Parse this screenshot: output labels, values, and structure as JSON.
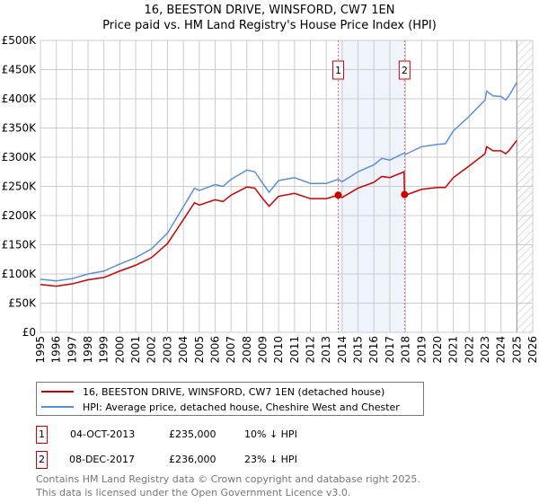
{
  "chart_data": {
    "type": "line",
    "title": "16, BEESTON DRIVE, WINSFORD, CW7 1EN",
    "subtitle": "Price paid vs. HM Land Registry's House Price Index (HPI)",
    "xlim": [
      1995,
      2026
    ],
    "ylim": [
      0,
      500000
    ],
    "y_ticks": [
      0,
      50000,
      100000,
      150000,
      200000,
      250000,
      300000,
      350000,
      400000,
      450000,
      500000
    ],
    "y_tick_labels": [
      "£0",
      "£50K",
      "£100K",
      "£150K",
      "£200K",
      "£250K",
      "£300K",
      "£350K",
      "£400K",
      "£450K",
      "£500K"
    ],
    "x_ticks": [
      "1995",
      "1996",
      "1997",
      "1998",
      "1999",
      "2000",
      "2001",
      "2002",
      "2003",
      "2004",
      "2005",
      "2006",
      "2007",
      "2008",
      "2009",
      "2010",
      "2011",
      "2012",
      "2013",
      "2014",
      "2015",
      "2016",
      "2017",
      "2018",
      "2019",
      "2020",
      "2021",
      "2022",
      "2023",
      "2024",
      "2025",
      "2026"
    ],
    "grid": true,
    "shaded_period": [
      2013.75,
      2017.93
    ],
    "forecast_hatch_from": 2025.0,
    "series": [
      {
        "name": "16, BEESTON DRIVE, WINSFORD, CW7 1EN (detached house)",
        "color": "#cc0000",
        "x": [
          1995,
          1996,
          1997,
          1998,
          1999,
          2000,
          2001,
          2002,
          2003,
          2004,
          2004.7,
          2005,
          2006,
          2006.5,
          2007,
          2008,
          2008.5,
          2009,
          2009.4,
          2010,
          2011,
          2012,
          2013,
          2013.75,
          2014,
          2015,
          2016,
          2016.5,
          2017,
          2017.9,
          2017.93,
          2018,
          2019,
          2020,
          2020.5,
          2021,
          2022,
          2023,
          2023.1,
          2023.5,
          2024,
          2024.3,
          2024.5,
          2025
        ],
        "y": [
          82,
          79,
          83,
          90,
          94,
          105,
          115,
          128,
          152,
          193,
          222,
          218,
          227,
          224,
          235,
          249,
          247,
          229,
          216,
          233,
          238,
          229,
          229,
          235,
          231,
          247,
          257,
          267,
          265,
          275,
          236,
          235,
          245,
          248,
          248,
          265,
          285,
          306,
          318,
          311,
          311,
          306,
          311,
          329
        ]
      },
      {
        "name": "HPI: Average price, detached house, Cheshire West and Chester",
        "color": "#5b8fd6",
        "x": [
          1995,
          1996,
          1997,
          1998,
          1999,
          2000,
          2001,
          2002,
          2003,
          2004,
          2004.7,
          2005,
          2006,
          2006.5,
          2007,
          2008,
          2008.5,
          2009,
          2009.4,
          2010,
          2011,
          2012,
          2013,
          2013.75,
          2014,
          2015,
          2016,
          2016.5,
          2017,
          2017.9,
          2017.93,
          2018,
          2019,
          2020,
          2020.5,
          2021,
          2022,
          2023,
          2023.1,
          2023.5,
          2024,
          2024.3,
          2024.5,
          2025
        ],
        "y": [
          91,
          88,
          92,
          100,
          105,
          117,
          128,
          143,
          170,
          215,
          247,
          243,
          253,
          250,
          262,
          278,
          275,
          255,
          240,
          260,
          265,
          255,
          255,
          262,
          258,
          275,
          287,
          298,
          295,
          307,
          307,
          305,
          318,
          322,
          323,
          345,
          370,
          398,
          413,
          405,
          404,
          398,
          405,
          428
        ]
      }
    ],
    "y_units": "thousands GBP",
    "markers": [
      {
        "label": "1",
        "x": 2013.75,
        "y": 235
      },
      {
        "label": "2",
        "x": 2017.93,
        "y": 236
      }
    ]
  },
  "legend": {
    "property": "16, BEESTON DRIVE, WINSFORD, CW7 1EN (detached house)",
    "hpi": "HPI: Average price, detached house, Cheshire West and Chester"
  },
  "transactions": [
    {
      "num": "1",
      "date": "04-OCT-2013",
      "price": "£235,000",
      "delta": "10% ↓ HPI"
    },
    {
      "num": "2",
      "date": "08-DEC-2017",
      "price": "£236,000",
      "delta": "23% ↓ HPI"
    }
  ],
  "footer": {
    "line1": "Contains HM Land Registry data © Crown copyright and database right 2025.",
    "line2": "This data is licensed under the Open Government Licence v3.0."
  }
}
